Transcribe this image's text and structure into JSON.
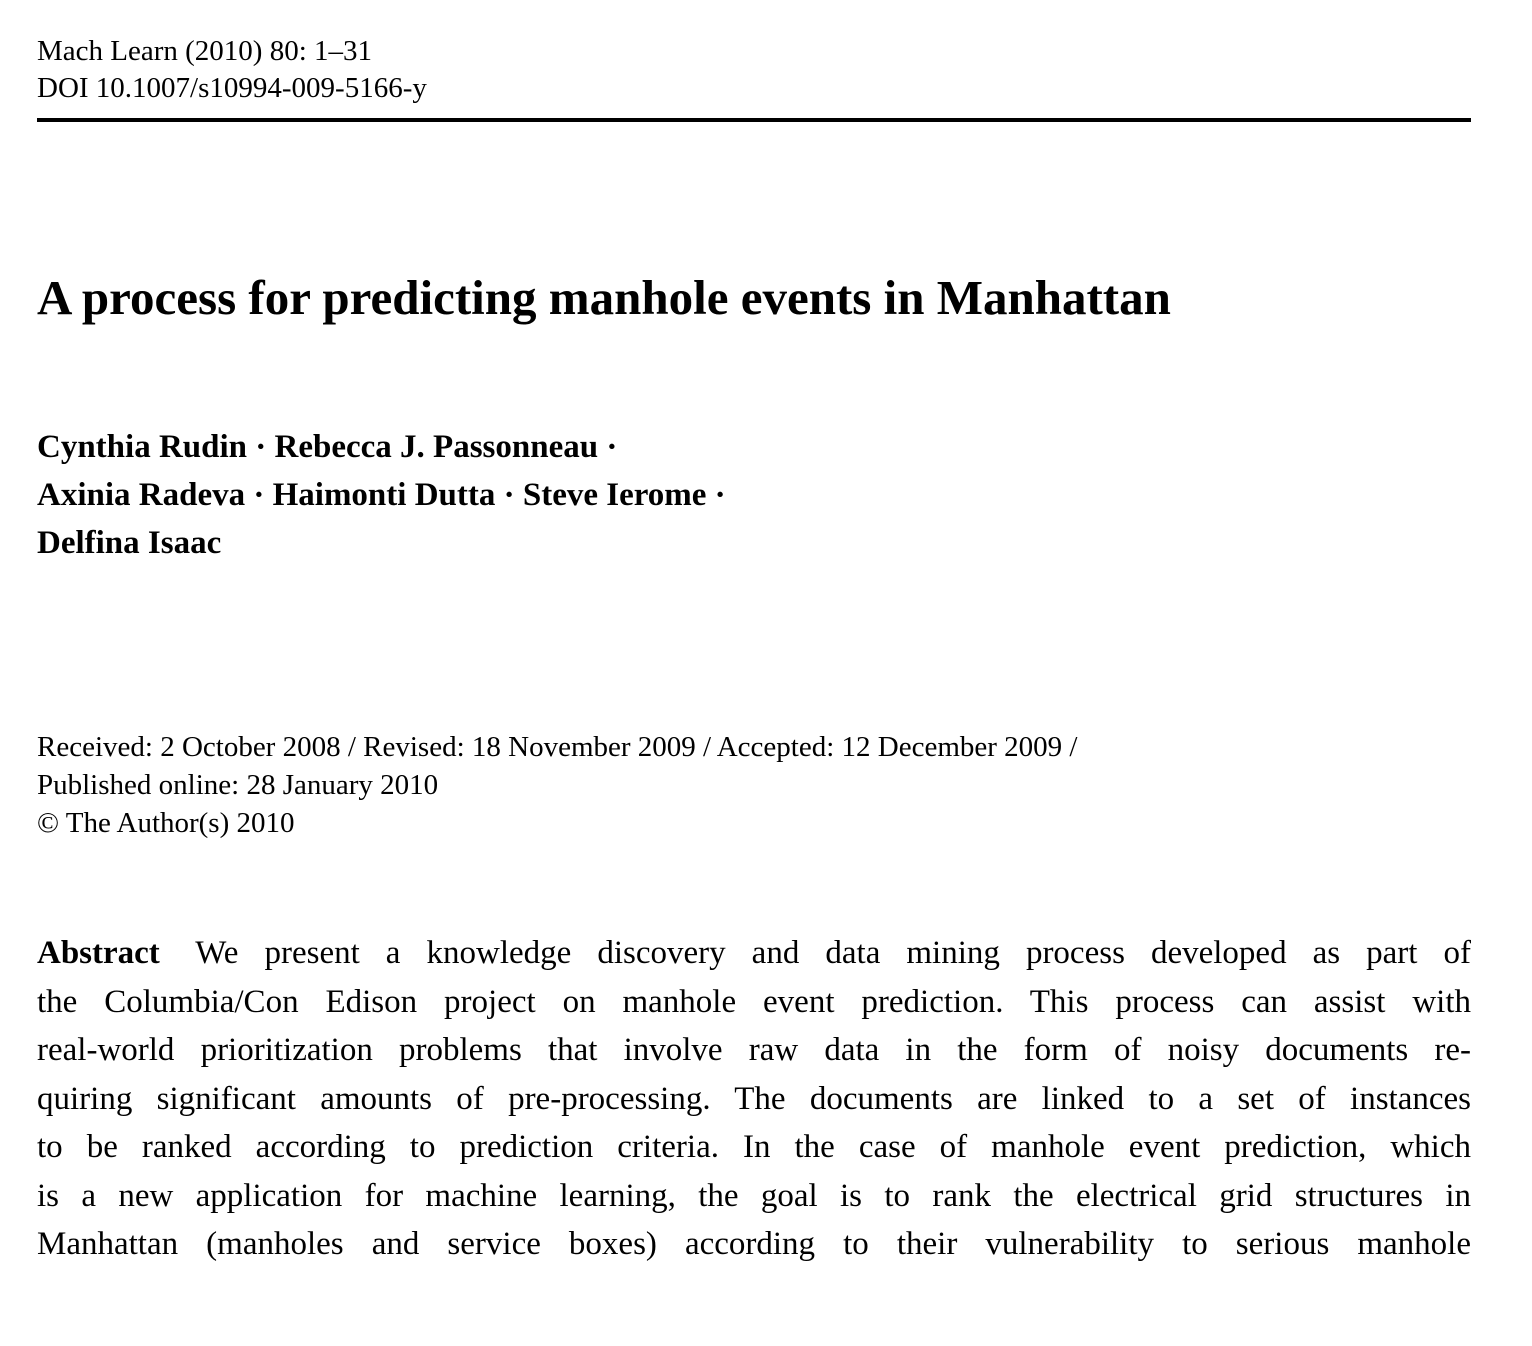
{
  "header": {
    "journal_line": "Mach Learn (2010) 80: 1–31",
    "doi_line": "DOI 10.1007/s10994-009-5166-y"
  },
  "title": "A process for predicting manhole events in Manhattan",
  "authors": {
    "line1": "Cynthia Rudin · Rebecca J. Passonneau ·",
    "line2": "Axinia Radeva · Haimonti Dutta · Steve Ierome ·",
    "line3": "Delfina Isaac"
  },
  "dates": {
    "line1": "Received: 2 October 2008 / Revised: 18 November 2009 / Accepted: 12 December 2009 /",
    "line2": "Published online: 28 January 2010",
    "line3": "© The Author(s) 2010"
  },
  "abstract": {
    "label": "Abstract",
    "lines": [
      "We present a knowledge discovery and data mining process developed as part of",
      "the Columbia/Con Edison project on manhole event prediction. This process can assist with",
      "real-world prioritization problems that involve raw data in the form of noisy documents re-",
      "quiring significant amounts of pre-processing. The documents are linked to a set of instances",
      "to be ranked according to prediction criteria. In the case of manhole event prediction, which",
      "is a new application for machine learning, the goal is to rank the electrical grid structures in",
      "Manhattan (manholes and service boxes) according to their vulnerability to serious manhole"
    ]
  }
}
